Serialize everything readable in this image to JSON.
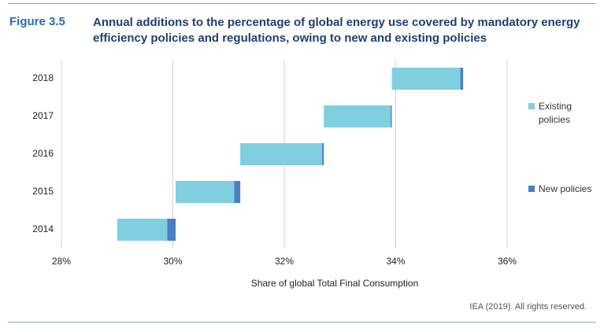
{
  "chart_data": {
    "type": "floating_bar",
    "figure_label": "Figure 3.5",
    "title": "Annual additions to the percentage of global energy use covered by mandatory energy efficiency policies and regulations, owing to new and existing policies",
    "xlabel": "Share of global Total Final Consumption",
    "source": "IEA (2019). All rights reserved.",
    "categories": [
      "2014",
      "2015",
      "2016",
      "2017",
      "2018"
    ],
    "start": 29.0,
    "series": [
      {
        "name": "Existing policies",
        "color": "#7fcfe1",
        "values": [
          0.9,
          1.05,
          1.47,
          1.2,
          1.23
        ]
      },
      {
        "name": "New policies",
        "color": "#4a7fc2",
        "values": [
          0.15,
          0.11,
          0.03,
          0.02,
          0.05
        ]
      }
    ],
    "xlim": [
      28,
      36
    ],
    "xticks": [
      {
        "value": 28,
        "label": "28%"
      },
      {
        "value": 30,
        "label": "30%"
      },
      {
        "value": 32,
        "label": "32%"
      },
      {
        "value": 34,
        "label": "34%"
      },
      {
        "value": 36,
        "label": "36%"
      }
    ],
    "grid": true
  }
}
